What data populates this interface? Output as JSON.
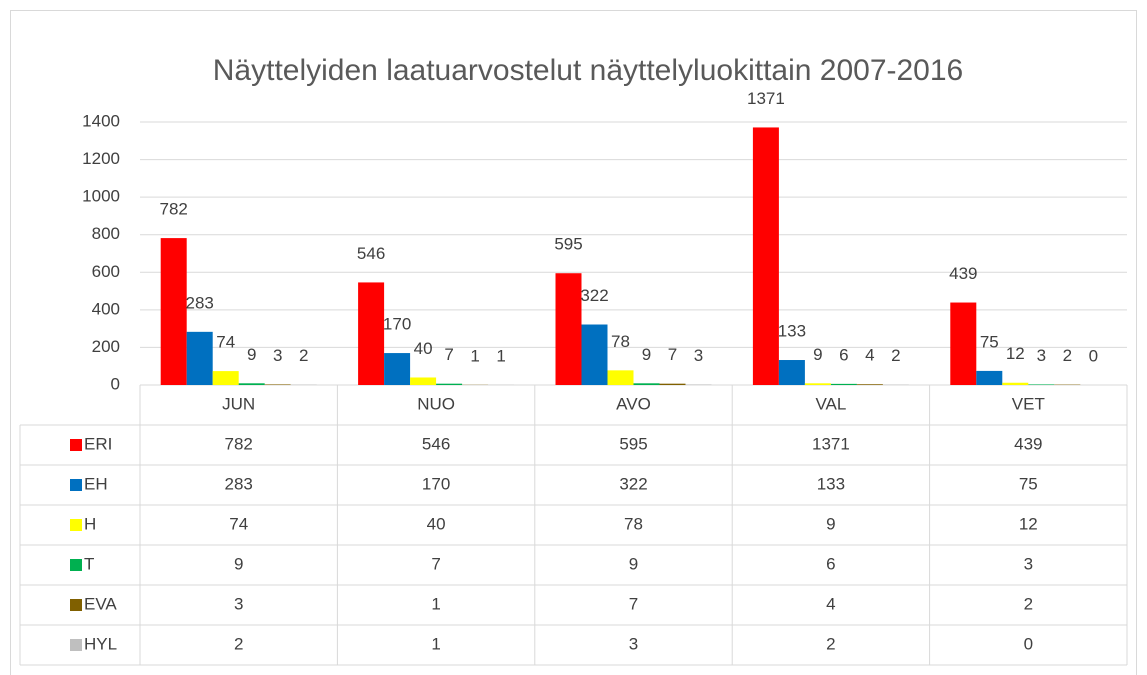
{
  "chart_data": {
    "type": "bar",
    "title": "Näyttelyiden laatuarvostelut näyttelyluokittain 2007-2016",
    "categories": [
      "JUN",
      "NUO",
      "AVO",
      "VAL",
      "VET"
    ],
    "series": [
      {
        "name": "ERI",
        "color": "#ff0000",
        "values": [
          782,
          546,
          595,
          1371,
          439
        ]
      },
      {
        "name": "EH",
        "color": "#0070c0",
        "values": [
          283,
          170,
          322,
          133,
          75
        ]
      },
      {
        "name": "H",
        "color": "#ffff00",
        "values": [
          74,
          40,
          78,
          9,
          12
        ]
      },
      {
        "name": "T",
        "color": "#00b050",
        "values": [
          9,
          7,
          9,
          6,
          3
        ]
      },
      {
        "name": "EVA",
        "color": "#806000",
        "values": [
          3,
          1,
          7,
          4,
          2
        ]
      },
      {
        "name": "HYL",
        "color": "#bfbfbf",
        "values": [
          2,
          1,
          3,
          2,
          0
        ]
      }
    ],
    "ylim": [
      0,
      1400
    ],
    "yticks": [
      0,
      200,
      400,
      600,
      800,
      1000,
      1200,
      1400
    ],
    "grid": true
  }
}
